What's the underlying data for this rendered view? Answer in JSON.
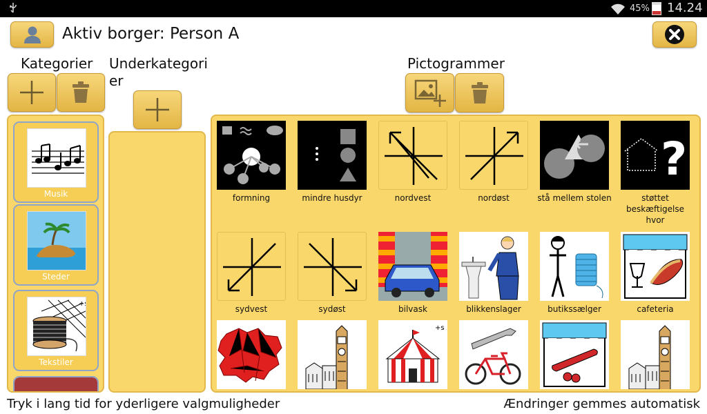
{
  "status_bar": {
    "battery": "45%",
    "time": "14.24"
  },
  "header": {
    "title": "Aktiv borger: Person A"
  },
  "columns": {
    "categories": "Kategorier",
    "subcategories": "Underkategori er",
    "pictograms": "Pictogrammer"
  },
  "categories": [
    {
      "label": "Musik",
      "icon": "music-notes-icon"
    },
    {
      "label": "Steder",
      "icon": "island-icon"
    },
    {
      "label": "Tekstiler",
      "icon": "yarn-spool-icon"
    }
  ],
  "pictograms": [
    {
      "label": "formning",
      "icon": "forming-icon"
    },
    {
      "label": "mindre husdyr",
      "icon": "shapes-icon"
    },
    {
      "label": "nordvest",
      "icon": "compass-northwest-icon"
    },
    {
      "label": "nordøst",
      "icon": "compass-northeast-icon"
    },
    {
      "label": "stå mellem stolen",
      "icon": "circles-arrow-icon"
    },
    {
      "label": "støttet beskæftigelse hvor",
      "icon": "house-question-icon"
    },
    {
      "label": "sydvest",
      "icon": "compass-southwest-icon"
    },
    {
      "label": "sydøst",
      "icon": "compass-southeast-icon"
    },
    {
      "label": "bilvask",
      "icon": "car-wash-icon"
    },
    {
      "label": "blikkenslager",
      "icon": "plumber-icon"
    },
    {
      "label": "butikssælger",
      "icon": "shop-assistant-icon"
    },
    {
      "label": "cafeteria",
      "icon": "cafeteria-icon"
    },
    {
      "label": "",
      "icon": "red-map-icon"
    },
    {
      "label": "",
      "icon": "town-hall-icon"
    },
    {
      "label": "",
      "icon": "circus-tent-icon"
    },
    {
      "label": "",
      "icon": "bike-wrench-icon"
    },
    {
      "label": "",
      "icon": "sausage-shop-icon"
    },
    {
      "label": "",
      "icon": "town-hall-icon"
    }
  ],
  "footer": {
    "hint": "Tryk i lang tid for yderligere valgmuligheder",
    "autosave": "Ændringer gemmes automatisk"
  }
}
